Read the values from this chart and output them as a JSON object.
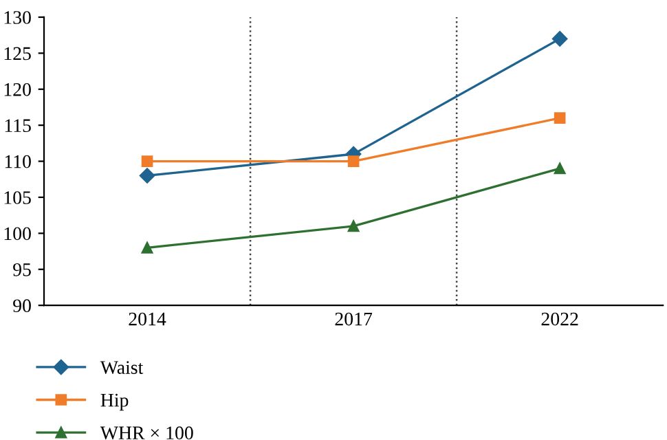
{
  "chart_data": {
    "type": "line",
    "categories": [
      "2014",
      "2017",
      "2022"
    ],
    "series": [
      {
        "name": "Waist",
        "color": "#1f6391",
        "marker": "diamond",
        "values": [
          108,
          111,
          127
        ]
      },
      {
        "name": "Hip",
        "color": "#f07c2a",
        "marker": "square",
        "values": [
          110,
          110,
          116
        ]
      },
      {
        "name": "WHR × 100",
        "color": "#2e7030",
        "marker": "triangle",
        "values": [
          98,
          101,
          109
        ]
      }
    ],
    "ylim": [
      90,
      130
    ],
    "yticks": [
      90,
      95,
      100,
      105,
      110,
      115,
      120,
      125,
      130
    ],
    "grid": "x",
    "legend": "bottom left",
    "line_style": "solid"
  }
}
